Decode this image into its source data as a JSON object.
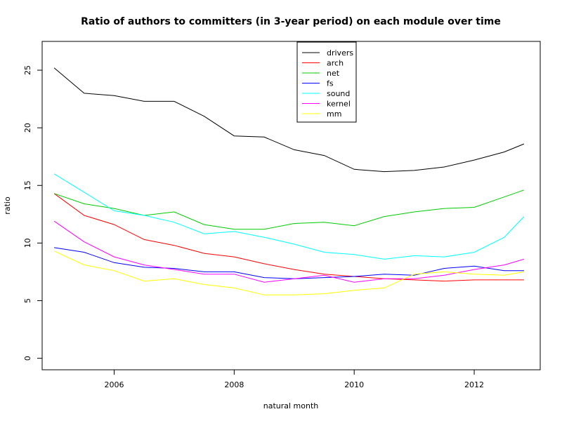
{
  "chart_data": {
    "type": "line",
    "title": "Ratio of authors to committers (in 3-year period) on each module over time",
    "xlabel": "natural month",
    "ylabel": "ratio",
    "xlim": [
      2004.8,
      2013.1
    ],
    "ylim": [
      -1,
      27.5
    ],
    "x_ticks": [
      2006,
      2008,
      2010,
      2012
    ],
    "x_tick_labels": [
      "2006",
      "2008",
      "2010",
      "2012"
    ],
    "y_ticks": [
      0,
      5,
      10,
      15,
      20,
      25
    ],
    "y_tick_labels": [
      "0",
      "5",
      "10",
      "15",
      "20",
      "25"
    ],
    "grid": false,
    "legend_position": "top-center",
    "x": [
      2005.0,
      2005.5,
      2006.0,
      2006.5,
      2007.0,
      2007.5,
      2008.0,
      2008.5,
      2009.0,
      2009.5,
      2010.0,
      2010.5,
      2011.0,
      2011.5,
      2012.0,
      2012.5,
      2012.83
    ],
    "series": [
      {
        "name": "drivers",
        "color": "#000000",
        "values": [
          25.2,
          23.0,
          22.8,
          22.3,
          22.3,
          21.0,
          19.3,
          19.2,
          18.1,
          17.6,
          16.4,
          16.2,
          16.3,
          16.6,
          17.2,
          17.9,
          18.6
        ]
      },
      {
        "name": "arch",
        "color": "#ff0000",
        "values": [
          14.3,
          12.4,
          11.6,
          10.3,
          9.8,
          9.1,
          8.8,
          8.2,
          7.7,
          7.3,
          7.1,
          6.9,
          6.8,
          6.7,
          6.8,
          6.8,
          6.8
        ]
      },
      {
        "name": "net",
        "color": "#00cc00",
        "values": [
          14.3,
          13.4,
          13.0,
          12.4,
          12.7,
          11.6,
          11.2,
          11.2,
          11.7,
          11.8,
          11.5,
          12.3,
          12.7,
          13.0,
          13.1,
          14.0,
          14.6
        ]
      },
      {
        "name": "fs",
        "color": "#0000ff",
        "values": [
          9.6,
          9.2,
          8.3,
          7.9,
          7.8,
          7.5,
          7.5,
          7.0,
          6.9,
          7.0,
          7.1,
          7.3,
          7.2,
          7.8,
          8.0,
          7.6,
          7.6
        ]
      },
      {
        "name": "sound",
        "color": "#00ffff",
        "values": [
          16.0,
          14.4,
          12.8,
          12.4,
          11.8,
          10.8,
          11.0,
          10.5,
          9.9,
          9.2,
          9.0,
          8.6,
          8.9,
          8.8,
          9.2,
          10.5,
          12.3
        ]
      },
      {
        "name": "kernel",
        "color": "#ff00ff",
        "values": [
          11.9,
          10.1,
          8.8,
          8.1,
          7.7,
          7.3,
          7.3,
          6.6,
          6.9,
          7.2,
          6.6,
          6.9,
          6.9,
          7.2,
          7.7,
          8.1,
          8.6
        ]
      },
      {
        "name": "mm",
        "color": "#ffff00",
        "values": [
          9.3,
          8.1,
          7.6,
          6.7,
          6.9,
          6.4,
          6.1,
          5.5,
          5.5,
          5.6,
          5.9,
          6.1,
          7.3,
          7.5,
          7.3,
          7.2,
          7.5
        ]
      }
    ]
  }
}
